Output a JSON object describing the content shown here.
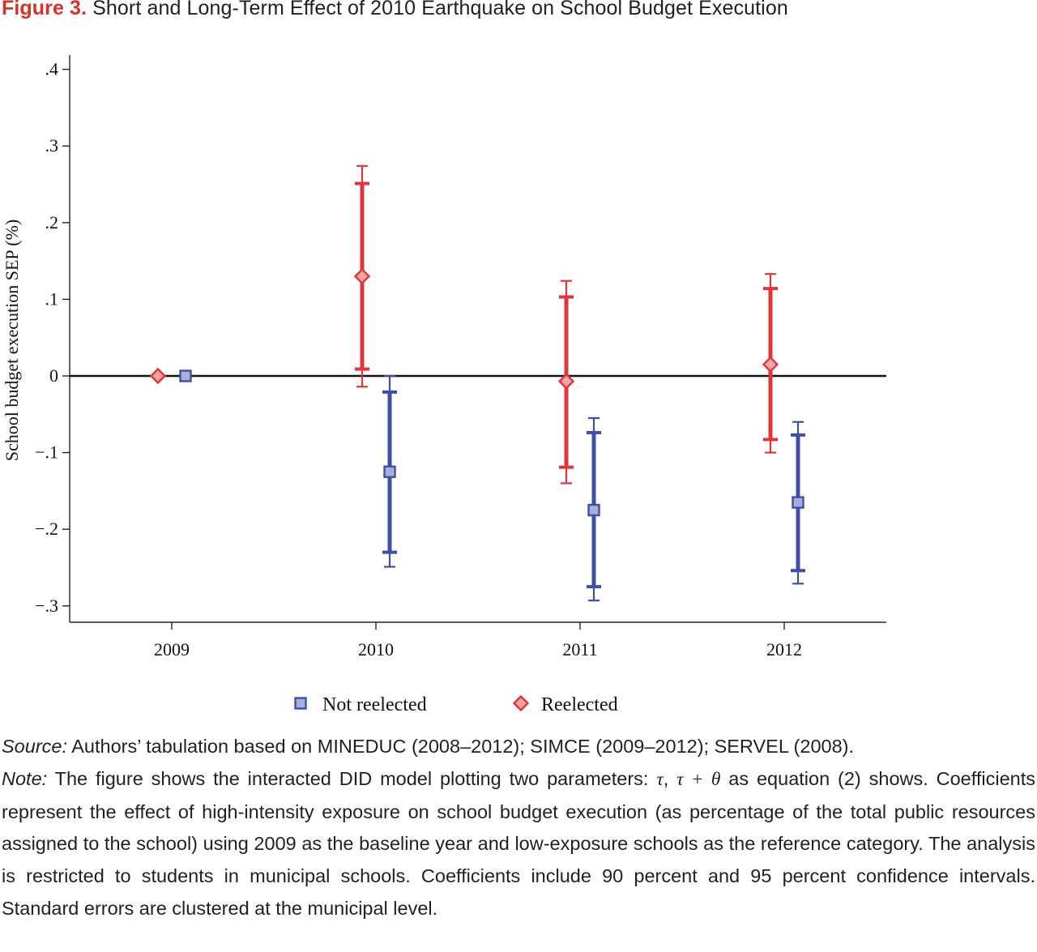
{
  "figure": {
    "label": "Figure 3.",
    "title": "Short and Long-Term Effect of 2010 Earthquake on School Budget Execution"
  },
  "colors": {
    "not_reelected": "#3f4fa8",
    "not_reelected_fill": "#a9afdb",
    "reelected": "#e0353b",
    "reelected_fill": "#f2a3a3",
    "title_accent": "#d6312b"
  },
  "chart_data": {
    "type": "scatter",
    "subtype": "coefficient plot with 90% and 95% confidence intervals",
    "ylabel": "School budget execution SEP (%)",
    "xlabel": "",
    "categories": [
      "2009",
      "2010",
      "2011",
      "2012"
    ],
    "ylim": [
      -0.32,
      0.42
    ],
    "yticks": [
      0.4,
      0.3,
      0.2,
      0.1,
      0,
      -0.1,
      -0.2,
      -0.3
    ],
    "ytick_labels": [
      ".4",
      ".3",
      ".2",
      ".1",
      "0",
      "−.1",
      "−.2",
      "−.3"
    ],
    "reference_line": 0,
    "grid": false,
    "legend_position": "bottom",
    "series": [
      {
        "name": "Not reelected",
        "marker": "square",
        "points": [
          {
            "x": "2009",
            "estimate": 0,
            "ci90": null,
            "ci95": null
          },
          {
            "x": "2010",
            "estimate": -0.125,
            "ci90": [
              -0.23,
              -0.021
            ],
            "ci95": [
              -0.249,
              0.0
            ]
          },
          {
            "x": "2011",
            "estimate": -0.175,
            "ci90": [
              -0.275,
              -0.074
            ],
            "ci95": [
              -0.293,
              -0.055
            ]
          },
          {
            "x": "2012",
            "estimate": -0.165,
            "ci90": [
              -0.254,
              -0.077
            ],
            "ci95": [
              -0.271,
              -0.06
            ]
          }
        ]
      },
      {
        "name": "Reelected",
        "marker": "diamond",
        "points": [
          {
            "x": "2009",
            "estimate": 0,
            "ci90": null,
            "ci95": null
          },
          {
            "x": "2010",
            "estimate": 0.13,
            "ci90": [
              0.009,
              0.251
            ],
            "ci95": [
              -0.014,
              0.274
            ]
          },
          {
            "x": "2011",
            "estimate": -0.007,
            "ci90": [
              -0.119,
              0.103
            ],
            "ci95": [
              -0.14,
              0.124
            ]
          },
          {
            "x": "2012",
            "estimate": 0.015,
            "ci90": [
              -0.083,
              0.114
            ],
            "ci95": [
              -0.1,
              0.133
            ]
          }
        ]
      }
    ]
  },
  "caption": {
    "source_label": "Source:",
    "source_text": " Authors’ tabulation based on MINEDUC (2008–2012); SIMCE (2009–2012); SERVEL (2008).",
    "note_label": "Note:",
    "note_part1": " The figure shows the interacted DID model plotting two parameters: ",
    "tau": "τ",
    "comma": ", ",
    "tau_theta": "τ + θ",
    "note_part2": " as equation (2) shows. Coefficients represent the effect of high-intensity exposure on school budget execution (as percentage of the total public resources assigned to the school) using 2009 as the baseline year and low-exposure schools as the reference category. The analysis is restricted to students in municipal schools. Coefficients include 90 percent and 95 percent confidence intervals. Standard errors are clustered at the municipal level."
  }
}
